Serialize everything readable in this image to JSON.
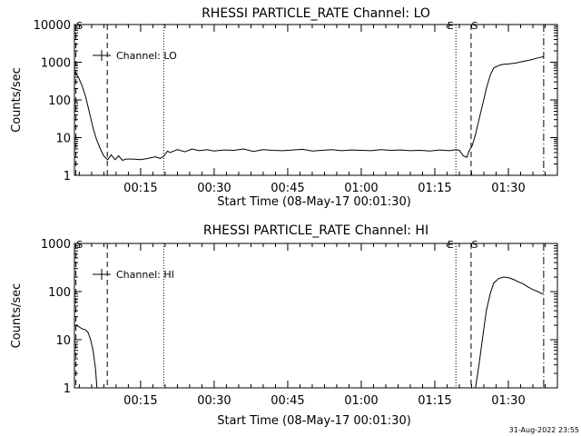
{
  "footer": {
    "timestamp": "31-Aug-2022 23:55"
  },
  "chart_data": [
    {
      "type": "line",
      "title": "RHESSI PARTICLE_RATE Channel: LO",
      "xlabel": "Start Time (08-May-17 00:01:30)",
      "ylabel": "Counts/sec",
      "yscale": "log",
      "ylim": [
        1,
        10000
      ],
      "y_ticks": [
        "1",
        "10",
        "100",
        "1000",
        "10000"
      ],
      "xlim": [
        1.5,
        100.0
      ],
      "x_ticks": [
        {
          "label": "00:15",
          "minute": 15
        },
        {
          "label": "00:30",
          "minute": 30
        },
        {
          "label": "00:45",
          "minute": 45
        },
        {
          "label": "01:00",
          "minute": 60
        },
        {
          "label": "01:15",
          "minute": 75
        },
        {
          "label": "01:30",
          "minute": 90
        }
      ],
      "legend": {
        "label": "Channel: LO",
        "position": "top-left"
      },
      "markers": [
        {
          "label": "S",
          "minute": 1.8,
          "style": "dash"
        },
        {
          "label": "",
          "minute": 8.2,
          "style": "dash"
        },
        {
          "label": "",
          "minute": 19.7,
          "style": "dot"
        },
        {
          "label": "E",
          "minute": 79.3,
          "style": "dot"
        },
        {
          "label": "S",
          "minute": 82.4,
          "style": "dash"
        },
        {
          "label": "",
          "minute": 97.2,
          "style": "dashdot"
        }
      ],
      "series": [
        {
          "x": [
            1.5,
            2.3,
            3.0,
            3.8,
            4.5,
            5.3,
            6.0,
            6.8,
            7.5,
            8.0,
            8.3,
            9.0,
            9.8,
            10.5,
            11.3,
            12.0,
            13.5,
            15.0,
            16.5,
            18.0,
            19.0,
            19.7,
            20.5,
            21.0,
            22.5,
            24.0,
            25.5,
            27.0,
            28.5,
            30.0,
            32.0,
            34.0,
            36.0,
            38.0,
            40.0,
            42.0,
            44.0,
            46.0,
            48.0,
            50.0,
            52.0,
            54.0,
            56.0,
            58.0,
            60.0,
            62.0,
            64.0,
            66.0,
            68.0,
            70.0,
            72.0,
            74.0,
            76.0,
            78.0,
            79.3,
            80.0,
            80.8,
            81.5,
            82.0,
            82.6,
            83.3,
            84.0,
            84.8,
            85.5,
            86.3,
            87.0,
            88.0,
            89.0,
            90.0,
            91.5,
            93.0,
            94.5,
            96.0,
            97.2
          ],
          "y": [
            550,
            400,
            250,
            120,
            50,
            18,
            9,
            5,
            3.2,
            2.8,
            2.6,
            3.5,
            2.6,
            3.3,
            2.5,
            2.7,
            2.7,
            2.6,
            2.8,
            3.1,
            2.8,
            3.2,
            4.4,
            4.0,
            4.8,
            4.2,
            5.0,
            4.5,
            4.8,
            4.4,
            4.7,
            4.6,
            5.0,
            4.3,
            4.8,
            4.6,
            4.5,
            4.7,
            4.9,
            4.4,
            4.6,
            4.8,
            4.5,
            4.7,
            4.6,
            4.5,
            4.8,
            4.6,
            4.7,
            4.5,
            4.6,
            4.4,
            4.7,
            4.5,
            4.8,
            4.6,
            3.3,
            3.0,
            4.5,
            6.0,
            12,
            30,
            80,
            200,
            450,
            700,
            820,
            880,
            900,
            950,
            1050,
            1150,
            1300,
            1400
          ]
        }
      ]
    },
    {
      "type": "line",
      "title": "RHESSI PARTICLE_RATE Channel: HI",
      "xlabel": "Start Time (08-May-17 00:01:30)",
      "ylabel": "Counts/sec",
      "yscale": "log",
      "ylim": [
        1,
        1000
      ],
      "y_ticks": [
        "1",
        "10",
        "100",
        "1000"
      ],
      "xlim": [
        1.5,
        100.0
      ],
      "x_ticks": [
        {
          "label": "00:15",
          "minute": 15
        },
        {
          "label": "00:30",
          "minute": 30
        },
        {
          "label": "00:45",
          "minute": 45
        },
        {
          "label": "01:00",
          "minute": 60
        },
        {
          "label": "01:15",
          "minute": 75
        },
        {
          "label": "01:30",
          "minute": 90
        }
      ],
      "legend": {
        "label": "Channel: HI",
        "position": "top-left"
      },
      "markers": [
        {
          "label": "S",
          "minute": 1.8,
          "style": "dash"
        },
        {
          "label": "",
          "minute": 8.2,
          "style": "dash"
        },
        {
          "label": "",
          "minute": 19.7,
          "style": "dot"
        },
        {
          "label": "E",
          "minute": 79.3,
          "style": "dot"
        },
        {
          "label": "S",
          "minute": 82.4,
          "style": "dash"
        },
        {
          "label": "",
          "minute": 97.2,
          "style": "dashdot"
        }
      ],
      "series": [
        {
          "x": [
            1.5,
            2.3,
            3.0,
            3.8,
            4.3,
            4.8,
            5.3,
            5.8,
            6.1
          ],
          "y": [
            20,
            19,
            17,
            16,
            14,
            10,
            6,
            2.5,
            1
          ]
        },
        {
          "x": [
            83.3,
            84.0,
            84.8,
            85.5,
            86.3,
            87.0,
            88.0,
            89.0,
            90.0,
            91.0,
            92.0,
            93.0,
            94.0,
            95.0,
            96.0,
            96.8,
            97.2
          ],
          "y": [
            1,
            3,
            12,
            40,
            90,
            150,
            185,
            200,
            195,
            180,
            160,
            145,
            125,
            110,
            100,
            90,
            95
          ]
        }
      ]
    }
  ]
}
